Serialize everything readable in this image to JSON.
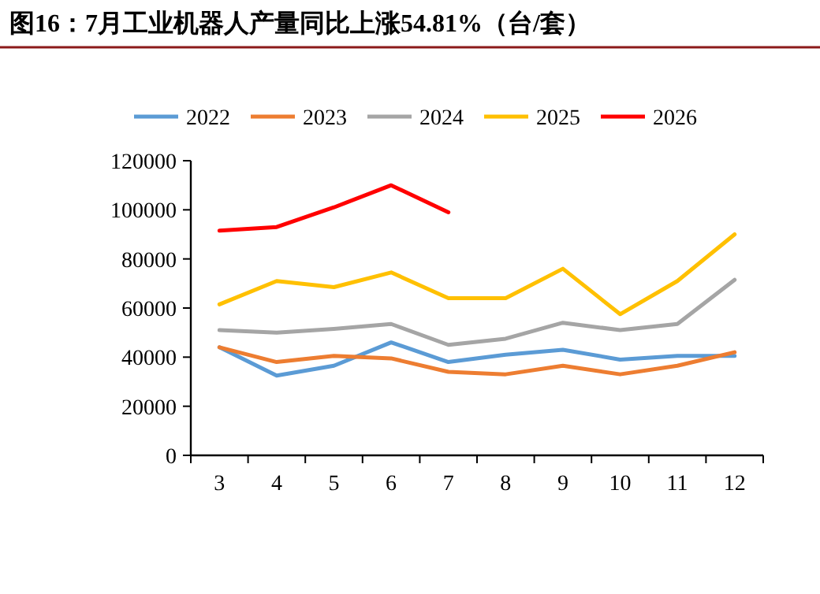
{
  "chart_data": {
    "type": "line",
    "title": "图16：7月工业机器人产量同比上涨54.81%（台/套）",
    "categories": [
      "3",
      "4",
      "5",
      "6",
      "7",
      "8",
      "9",
      "10",
      "11",
      "12"
    ],
    "series": [
      {
        "name": "2022",
        "color": "#5b9bd5",
        "values": [
          44000,
          32500,
          36500,
          46000,
          38000,
          41000,
          43000,
          39000,
          40500,
          40500
        ]
      },
      {
        "name": "2023",
        "color": "#ed7d31",
        "values": [
          44000,
          38000,
          40500,
          39500,
          34000,
          33000,
          36500,
          33000,
          36500,
          42000
        ]
      },
      {
        "name": "2024",
        "color": "#a5a5a5",
        "values": [
          51000,
          50000,
          51500,
          53500,
          45000,
          47500,
          54000,
          51000,
          53500,
          71500
        ]
      },
      {
        "name": "2025",
        "color": "#ffc000",
        "values": [
          61500,
          71000,
          68500,
          74500,
          64000,
          64000,
          76000,
          57500,
          71000,
          90000
        ]
      },
      {
        "name": "2026",
        "color": "#ff0000",
        "values": [
          91500,
          93000,
          101000,
          110000,
          99000,
          null,
          null,
          null,
          null,
          null
        ]
      }
    ],
    "ylim": [
      0,
      120000
    ],
    "yticks": [
      0,
      20000,
      40000,
      60000,
      80000,
      100000,
      120000
    ],
    "legend": "top",
    "grid": false,
    "marker": "none",
    "line_style": "solid"
  }
}
